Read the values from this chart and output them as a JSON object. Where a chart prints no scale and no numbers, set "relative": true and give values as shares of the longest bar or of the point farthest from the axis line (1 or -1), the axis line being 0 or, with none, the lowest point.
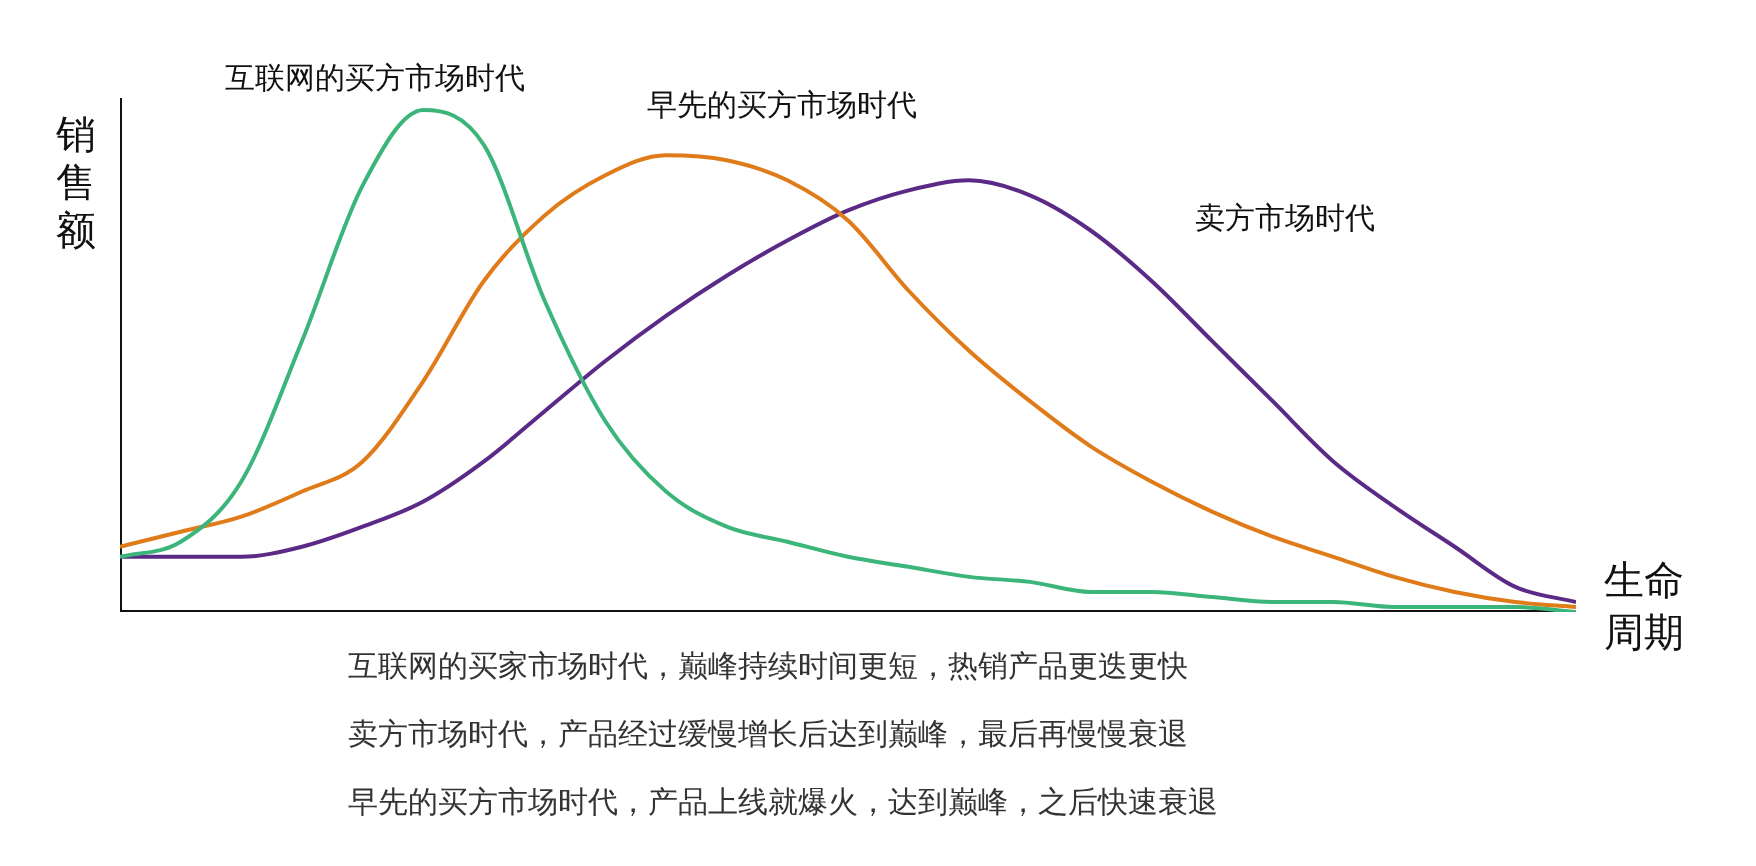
{
  "chart_data": {
    "type": "line",
    "relative": true,
    "ylabel": "销售额",
    "xlabel": "生命周期",
    "tick_labels": false,
    "grid": false,
    "legend": false,
    "marker": "none",
    "line_style": "solid",
    "categories": [
      null,
      null,
      null,
      null,
      null,
      null,
      null,
      null,
      null,
      null,
      null,
      null,
      null,
      null,
      null,
      null,
      null,
      null,
      null,
      null,
      null,
      null,
      null,
      null,
      null
    ],
    "series": [
      {
        "name": "互联网的买方市场时代",
        "color": "#3cb57a",
        "values": [
          0.11,
          0.14,
          0.26,
          0.54,
          0.85,
          1.0,
          0.93,
          0.62,
          0.38,
          0.24,
          0.17,
          0.14,
          0.11,
          0.09,
          0.07,
          0.06,
          0.04,
          0.04,
          0.03,
          0.02,
          0.02,
          0.01,
          0.01,
          0.01,
          0.0
        ]
      },
      {
        "name": "早先的买方市场时代",
        "color": "#e07b1a",
        "values": [
          0.13,
          0.16,
          0.19,
          0.24,
          0.3,
          0.46,
          0.66,
          0.79,
          0.87,
          0.91,
          0.9,
          0.86,
          0.78,
          0.64,
          0.52,
          0.42,
          0.33,
          0.26,
          0.2,
          0.15,
          0.11,
          0.07,
          0.04,
          0.02,
          0.01
        ]
      },
      {
        "name": "卖方市场时代",
        "color": "#5b2a86",
        "values": [
          0.11,
          0.11,
          0.11,
          0.13,
          0.17,
          0.22,
          0.3,
          0.4,
          0.5,
          0.59,
          0.67,
          0.74,
          0.8,
          0.84,
          0.86,
          0.83,
          0.76,
          0.66,
          0.54,
          0.42,
          0.3,
          0.21,
          0.13,
          0.05,
          0.02
        ]
      }
    ],
    "annotations": [
      "互联网的买家市场时代，巅峰持续时间更短，热销产品更迭更快",
      "卖方市场时代，产品经过缓慢增长后达到巅峰，最后再慢慢衰退",
      "早先的买方市场时代，产品上线就爆火，达到巅峰，之后快速衰退"
    ]
  }
}
